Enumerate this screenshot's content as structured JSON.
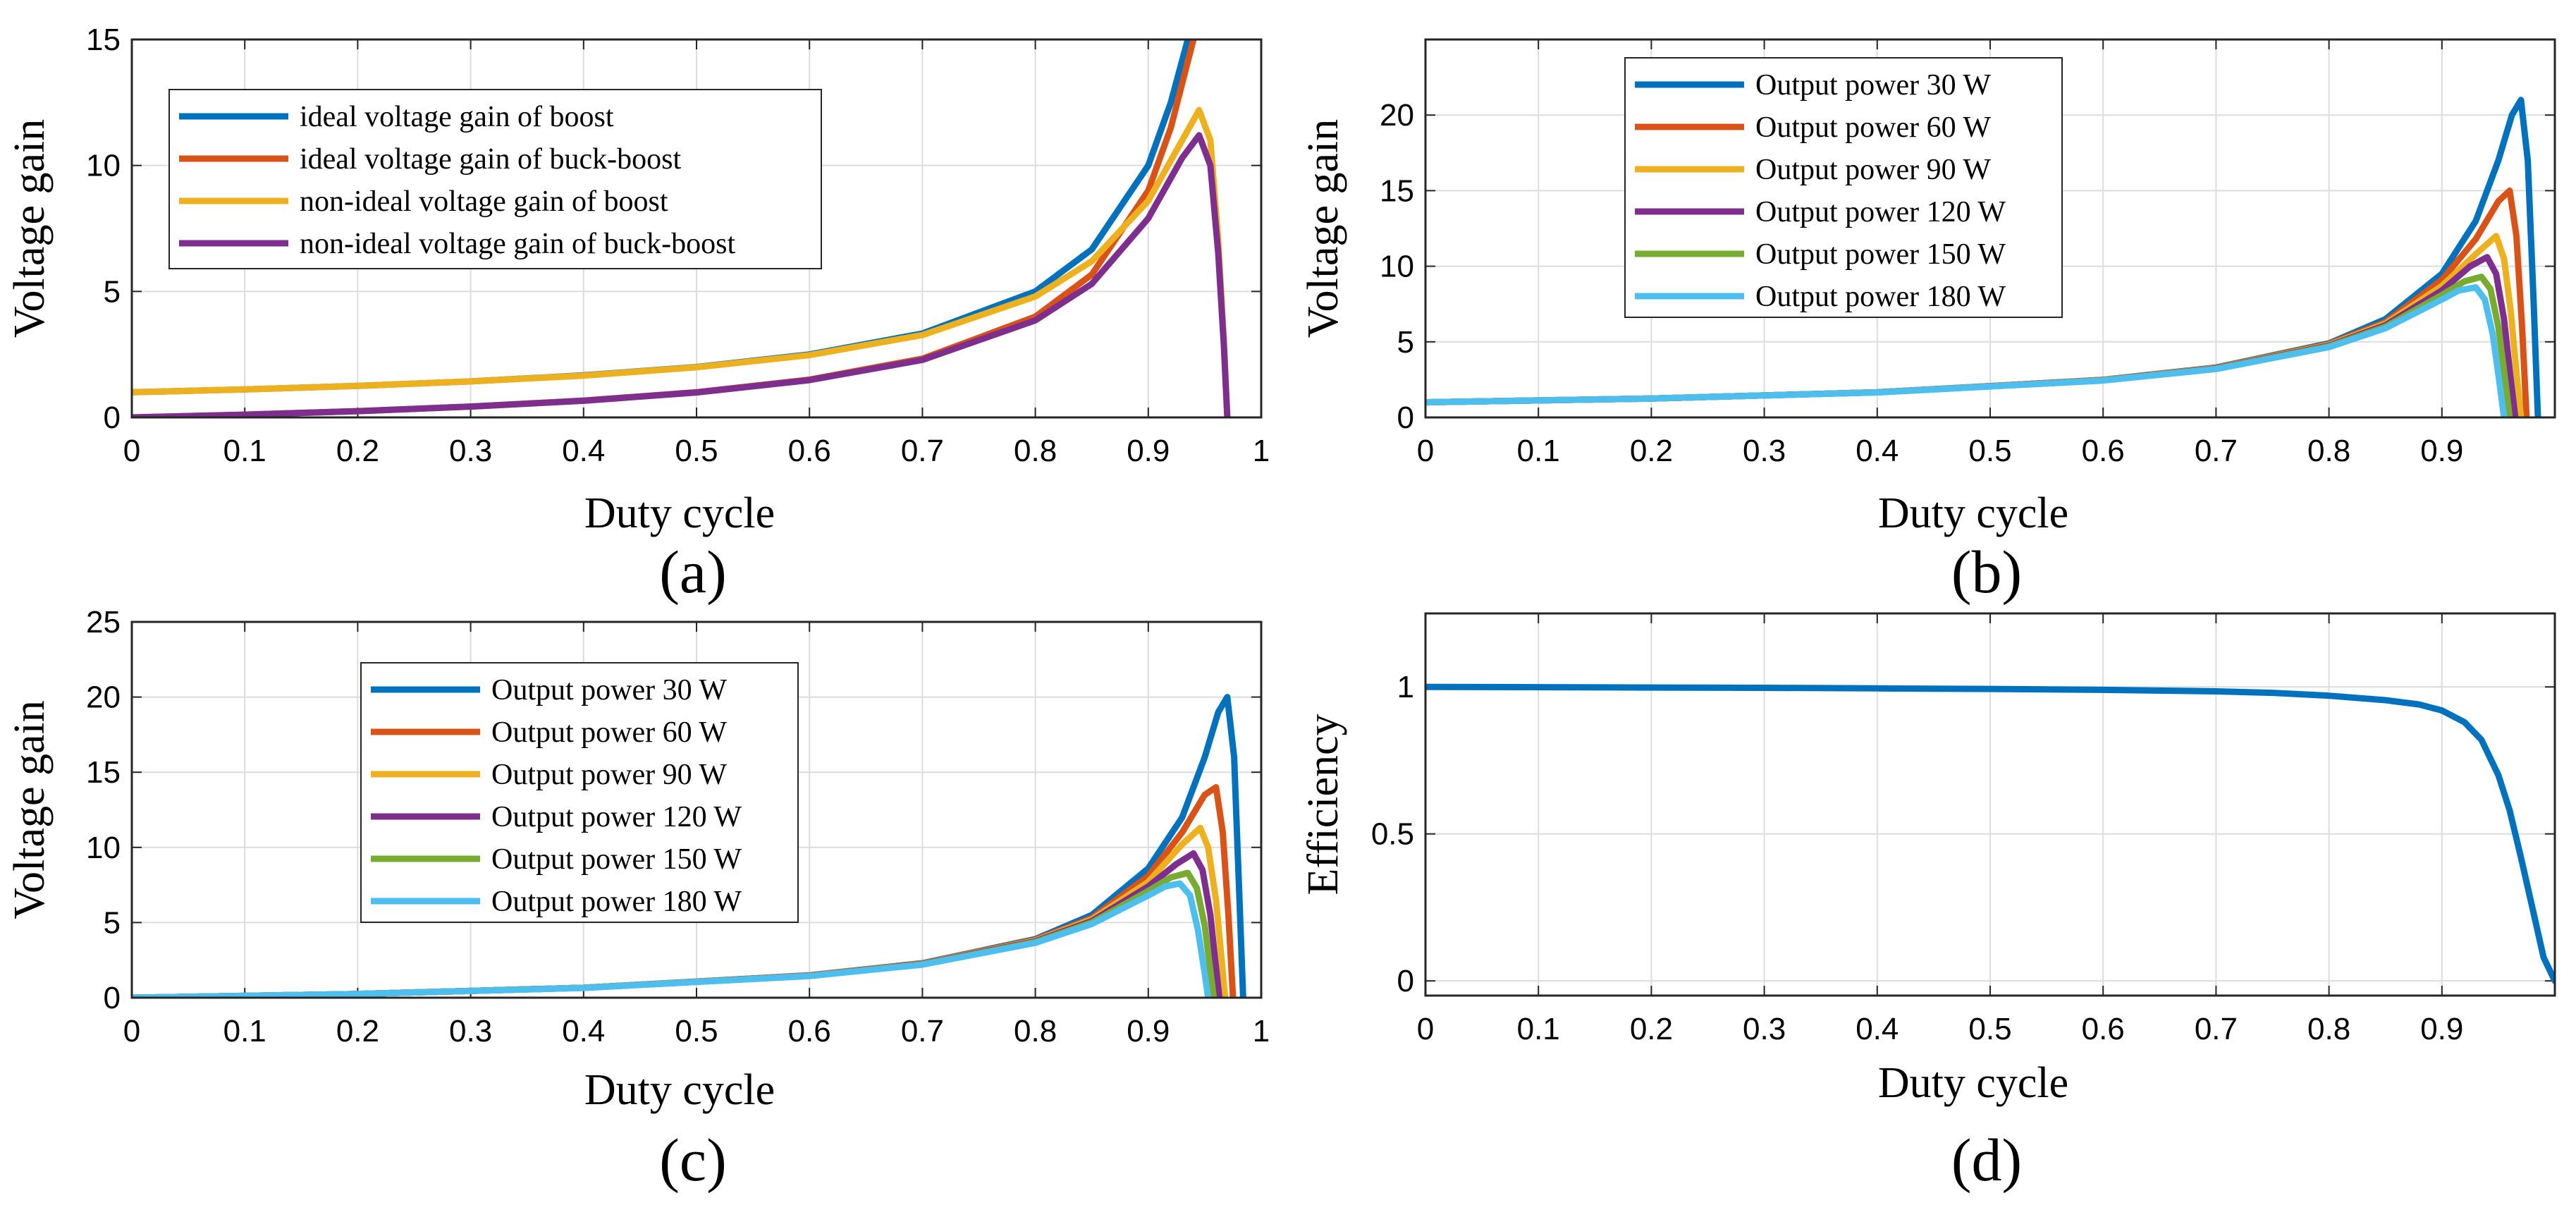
{
  "chart_data": [
    {
      "panel": "(a)",
      "type": "line",
      "xlabel": "Duty cycle",
      "ylabel": "Voltage gain",
      "xlim": [
        0,
        1
      ],
      "ylim": [
        0,
        15
      ],
      "xticks": [
        "0",
        "0.1",
        "0.2",
        "0.3",
        "0.4",
        "0.5",
        "0.6",
        "0.7",
        "0.8",
        "0.9",
        "1"
      ],
      "yticks": [
        "0",
        "5",
        "10",
        "15"
      ],
      "grid": true,
      "legend_position": "top-left",
      "series": [
        {
          "name": "ideal voltage gain of boost",
          "color": "#0072BD",
          "x": [
            0,
            0.1,
            0.2,
            0.3,
            0.4,
            0.5,
            0.6,
            0.7,
            0.8,
            0.85,
            0.9,
            0.92,
            0.935
          ],
          "y": [
            1,
            1.11,
            1.25,
            1.43,
            1.67,
            2,
            2.5,
            3.33,
            5,
            6.67,
            10,
            12.5,
            15
          ]
        },
        {
          "name": "ideal voltage gain of buck-boost",
          "color": "#D95319",
          "x": [
            0,
            0.1,
            0.2,
            0.3,
            0.4,
            0.5,
            0.6,
            0.7,
            0.8,
            0.85,
            0.9,
            0.92,
            0.94
          ],
          "y": [
            0,
            0.11,
            0.25,
            0.43,
            0.67,
            1,
            1.5,
            2.33,
            4,
            5.67,
            9,
            11.5,
            15
          ]
        },
        {
          "name": "non-ideal voltage gain of boost",
          "color": "#EDB120",
          "x": [
            0,
            0.1,
            0.2,
            0.3,
            0.4,
            0.5,
            0.6,
            0.7,
            0.8,
            0.85,
            0.9,
            0.93,
            0.945,
            0.955,
            0.962,
            0.967,
            0.97
          ],
          "y": [
            1,
            1.11,
            1.25,
            1.43,
            1.66,
            1.99,
            2.47,
            3.27,
            4.8,
            6.2,
            8.6,
            11.0,
            12.2,
            11.0,
            7.0,
            3.0,
            0
          ]
        },
        {
          "name": "non-ideal voltage gain of buck-boost",
          "color": "#7E2F8E",
          "x": [
            0,
            0.1,
            0.2,
            0.3,
            0.4,
            0.5,
            0.6,
            0.7,
            0.8,
            0.85,
            0.9,
            0.93,
            0.945,
            0.955,
            0.962,
            0.967,
            0.97
          ],
          "y": [
            0,
            0.11,
            0.25,
            0.43,
            0.66,
            0.99,
            1.48,
            2.28,
            3.85,
            5.3,
            7.9,
            10.3,
            11.2,
            10.0,
            6.5,
            2.8,
            0
          ]
        }
      ]
    },
    {
      "panel": "(b)",
      "type": "line",
      "xlabel": "Duty cycle",
      "ylabel": "Voltage gain",
      "xlim": [
        0,
        1
      ],
      "ylim": [
        0,
        25
      ],
      "xticks": [
        "0",
        "0.1",
        "0.2",
        "0.3",
        "0.4",
        "0.5",
        "0.6",
        "0.7",
        "0.8",
        "0.9"
      ],
      "yticks": [
        "0",
        "5",
        "10",
        "15",
        "20"
      ],
      "grid": true,
      "legend_position": "top-center",
      "series": [
        {
          "name": "Output power 30 W",
          "color": "#0072BD",
          "x": [
            0,
            0.2,
            0.4,
            0.6,
            0.7,
            0.8,
            0.85,
            0.9,
            0.93,
            0.95,
            0.962,
            0.97,
            0.976,
            0.981,
            0.985
          ],
          "y": [
            1,
            1.25,
            1.66,
            2.49,
            3.3,
            4.9,
            6.5,
            9.5,
            13.0,
            17.0,
            20.0,
            21.0,
            17.0,
            8.0,
            0
          ]
        },
        {
          "name": "Output power 60 W",
          "color": "#D95319",
          "x": [
            0,
            0.2,
            0.4,
            0.6,
            0.7,
            0.8,
            0.85,
            0.9,
            0.93,
            0.95,
            0.96,
            0.966,
            0.971,
            0.975
          ],
          "y": [
            1,
            1.25,
            1.66,
            2.48,
            3.28,
            4.85,
            6.3,
            9.1,
            11.8,
            14.3,
            15.0,
            12.0,
            6.0,
            0
          ]
        },
        {
          "name": "Output power 90 W",
          "color": "#EDB120",
          "x": [
            0,
            0.2,
            0.4,
            0.6,
            0.7,
            0.8,
            0.85,
            0.9,
            0.93,
            0.948,
            0.955,
            0.961,
            0.966,
            0.97
          ],
          "y": [
            1,
            1.25,
            1.66,
            2.47,
            3.26,
            4.8,
            6.2,
            8.7,
            10.8,
            12.0,
            10.5,
            7.0,
            3.0,
            0
          ]
        },
        {
          "name": "Output power 120 W",
          "color": "#7E2F8E",
          "x": [
            0,
            0.2,
            0.4,
            0.6,
            0.7,
            0.8,
            0.85,
            0.9,
            0.925,
            0.94,
            0.948,
            0.955,
            0.961,
            0.965
          ],
          "y": [
            1,
            1.25,
            1.66,
            2.46,
            3.24,
            4.75,
            6.1,
            8.4,
            10.0,
            10.6,
            9.5,
            6.5,
            2.5,
            0
          ]
        },
        {
          "name": "Output power 150 W",
          "color": "#77AC30",
          "x": [
            0,
            0.2,
            0.4,
            0.6,
            0.7,
            0.8,
            0.85,
            0.9,
            0.92,
            0.935,
            0.943,
            0.95,
            0.956,
            0.96
          ],
          "y": [
            1,
            1.25,
            1.66,
            2.45,
            3.22,
            4.7,
            6.0,
            8.1,
            9.0,
            9.3,
            8.5,
            6.0,
            2.5,
            0
          ]
        },
        {
          "name": "Output power 180 W",
          "color": "#4DBEEE",
          "x": [
            0,
            0.2,
            0.4,
            0.6,
            0.7,
            0.8,
            0.85,
            0.9,
            0.915,
            0.93,
            0.938,
            0.945,
            0.951,
            0.955
          ],
          "y": [
            1,
            1.25,
            1.65,
            2.44,
            3.2,
            4.65,
            5.9,
            7.8,
            8.4,
            8.6,
            7.8,
            5.5,
            2.3,
            0
          ]
        }
      ]
    },
    {
      "panel": "(c)",
      "type": "line",
      "xlabel": "Duty cycle",
      "ylabel": "Voltage gain",
      "xlim": [
        0,
        1
      ],
      "ylim": [
        0,
        25
      ],
      "xticks": [
        "0",
        "0.1",
        "0.2",
        "0.3",
        "0.4",
        "0.5",
        "0.6",
        "0.7",
        "0.8",
        "0.9",
        "1"
      ],
      "yticks": [
        "0",
        "5",
        "10",
        "15",
        "20",
        "25"
      ],
      "grid": true,
      "legend_position": "top-center",
      "series": [
        {
          "name": "Output power 30 W",
          "color": "#0072BD",
          "x": [
            0,
            0.2,
            0.4,
            0.6,
            0.7,
            0.8,
            0.85,
            0.9,
            0.93,
            0.95,
            0.962,
            0.97,
            0.976,
            0.98,
            0.984
          ],
          "y": [
            0,
            0.25,
            0.66,
            1.49,
            2.3,
            3.9,
            5.5,
            8.6,
            12.0,
            16.0,
            19.0,
            20.0,
            16.0,
            8.0,
            0
          ]
        },
        {
          "name": "Output power 60 W",
          "color": "#D95319",
          "x": [
            0,
            0.2,
            0.4,
            0.6,
            0.7,
            0.8,
            0.85,
            0.9,
            0.93,
            0.95,
            0.96,
            0.966,
            0.971,
            0.975
          ],
          "y": [
            0,
            0.25,
            0.66,
            1.48,
            2.28,
            3.85,
            5.3,
            8.1,
            11.0,
            13.5,
            14.0,
            11.0,
            5.5,
            0
          ]
        },
        {
          "name": "Output power 90 W",
          "color": "#EDB120",
          "x": [
            0,
            0.2,
            0.4,
            0.6,
            0.7,
            0.8,
            0.85,
            0.9,
            0.93,
            0.946,
            0.953,
            0.96,
            0.965,
            0.968
          ],
          "y": [
            0,
            0.25,
            0.66,
            1.47,
            2.26,
            3.8,
            5.2,
            7.7,
            10.2,
            11.3,
            10.0,
            6.5,
            2.5,
            0
          ]
        },
        {
          "name": "Output power 120 W",
          "color": "#7E2F8E",
          "x": [
            0,
            0.2,
            0.4,
            0.6,
            0.7,
            0.8,
            0.85,
            0.9,
            0.925,
            0.94,
            0.948,
            0.955,
            0.96,
            0.963
          ],
          "y": [
            0,
            0.25,
            0.66,
            1.46,
            2.24,
            3.75,
            5.1,
            7.4,
            8.9,
            9.6,
            8.5,
            5.5,
            2.0,
            0
          ]
        },
        {
          "name": "Output power 150 W",
          "color": "#77AC30",
          "x": [
            0,
            0.2,
            0.4,
            0.6,
            0.7,
            0.8,
            0.85,
            0.9,
            0.92,
            0.935,
            0.943,
            0.95,
            0.955,
            0.958
          ],
          "y": [
            0,
            0.25,
            0.66,
            1.45,
            2.22,
            3.7,
            5.0,
            7.1,
            8.0,
            8.3,
            7.3,
            4.8,
            1.8,
            0
          ]
        },
        {
          "name": "Output power 180 W",
          "color": "#4DBEEE",
          "x": [
            0,
            0.2,
            0.4,
            0.6,
            0.7,
            0.8,
            0.85,
            0.9,
            0.915,
            0.928,
            0.937,
            0.944,
            0.95,
            0.953
          ],
          "y": [
            0,
            0.25,
            0.65,
            1.44,
            2.2,
            3.65,
            4.9,
            6.8,
            7.4,
            7.6,
            6.8,
            4.5,
            1.6,
            0
          ]
        }
      ]
    },
    {
      "panel": "(d)",
      "type": "line",
      "xlabel": "Duty cycle",
      "ylabel": "Efficiency",
      "xlim": [
        0,
        1
      ],
      "ylim": [
        -0.05,
        1.25
      ],
      "xticks": [
        "0",
        "0.1",
        "0.2",
        "0.3",
        "0.4",
        "0.5",
        "0.6",
        "0.7",
        "0.8",
        "0.9"
      ],
      "yticks": [
        "0",
        "0.5",
        "1"
      ],
      "grid": true,
      "series": [
        {
          "name": "Efficiency",
          "color": "#0072BD",
          "x": [
            0,
            0.1,
            0.2,
            0.3,
            0.4,
            0.5,
            0.6,
            0.7,
            0.75,
            0.8,
            0.85,
            0.88,
            0.9,
            0.92,
            0.935,
            0.95,
            0.96,
            0.97,
            0.98,
            0.99,
            1.0
          ],
          "y": [
            1.0,
            0.999,
            0.998,
            0.997,
            0.995,
            0.993,
            0.99,
            0.985,
            0.98,
            0.97,
            0.955,
            0.94,
            0.92,
            0.88,
            0.82,
            0.7,
            0.58,
            0.42,
            0.25,
            0.08,
            0.0
          ]
        }
      ]
    }
  ]
}
